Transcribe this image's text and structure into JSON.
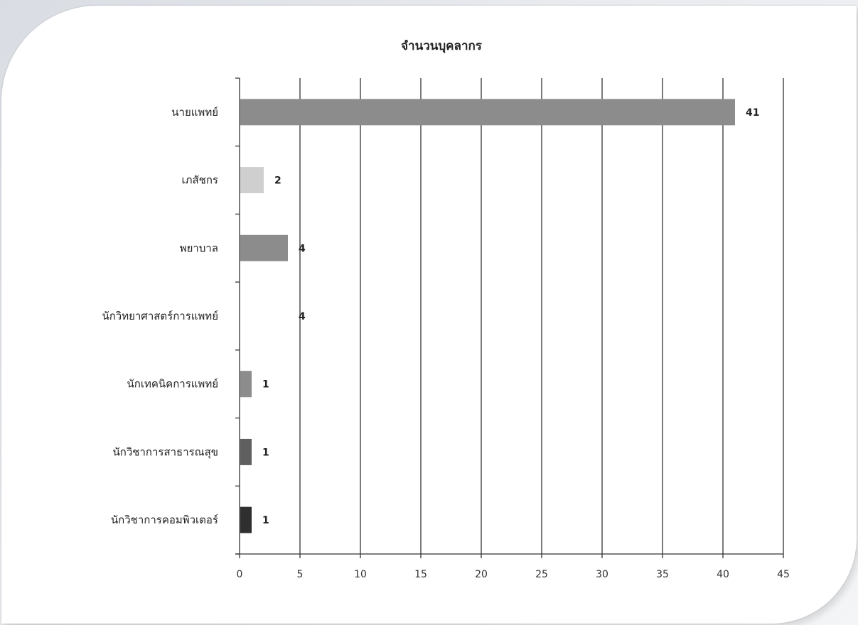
{
  "chart_data": {
    "type": "bar",
    "orientation": "horizontal",
    "title": "จำนวนบุคลากร",
    "xlabel": "",
    "ylabel": "",
    "xlim": [
      0,
      45
    ],
    "xticks": [
      0,
      5,
      10,
      15,
      20,
      25,
      30,
      35,
      40,
      45
    ],
    "grid": "vertical",
    "legend": "none",
    "categories": [
      "นายแพทย์",
      "เภสัชกร",
      "พยาบาล",
      "นักวิทยาศาสตร์การแพทย์",
      "นักเทคนิคการแพทย์",
      "นักวิชาการสาธารณสุข",
      "นักวิชาการคอมพิวเตอร์"
    ],
    "values": [
      41,
      2,
      4,
      4,
      1,
      1,
      1
    ],
    "bar_colors": [
      "#8c8c8c",
      "#cfcfcf",
      "#8c8c8c",
      "#ffffff",
      "#8c8c8c",
      "#5f5f5f",
      "#2f2f2f"
    ]
  }
}
